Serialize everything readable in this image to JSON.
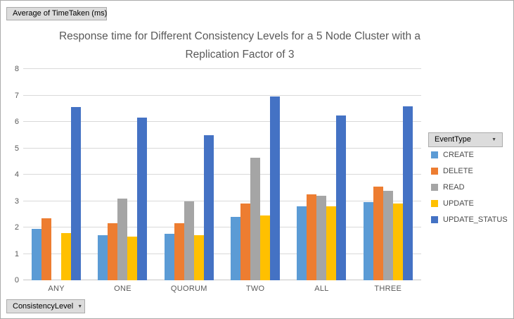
{
  "pivot_buttons": {
    "value_field": "Average of TimeTaken (ms)",
    "legend_field": "EventType",
    "axis_field": "ConsistencyLevel",
    "dropdown_arrow": "▼"
  },
  "chart_data": {
    "type": "bar",
    "title_line1": "Response time for Different Consistency Levels for a 5 Node Cluster with a",
    "title_line2": "Replication Factor of 3",
    "xlabel": "ConsistencyLevel",
    "ylabel": "Average of TimeTaken (ms)",
    "categories": [
      "ANY",
      "ONE",
      "QUORUM",
      "TWO",
      "ALL",
      "THREE"
    ],
    "series": [
      {
        "name": "CREATE",
        "color": "#5B9BD5",
        "values": [
          1.95,
          1.7,
          1.75,
          2.4,
          2.8,
          2.95
        ]
      },
      {
        "name": "DELETE",
        "color": "#ED7D31",
        "values": [
          2.35,
          2.15,
          2.15,
          2.9,
          3.25,
          3.55
        ]
      },
      {
        "name": "READ",
        "color": "#A5A5A5",
        "values": [
          0,
          3.1,
          3.0,
          4.65,
          3.2,
          3.4
        ]
      },
      {
        "name": "UPDATE",
        "color": "#FFC000",
        "values": [
          1.8,
          1.65,
          1.7,
          2.45,
          2.8,
          2.9
        ]
      },
      {
        "name": "UPDATE_STATUS",
        "color": "#4472C4",
        "values": [
          6.55,
          6.15,
          5.5,
          6.95,
          6.25,
          6.6
        ]
      }
    ],
    "ylim": [
      0,
      8
    ],
    "y_ticks": [
      0,
      1,
      2,
      3,
      4,
      5,
      6,
      7,
      8
    ],
    "grid": true,
    "legend_position": "right"
  },
  "colors": {
    "title_text": "#595959",
    "axis_text": "#595959",
    "gridline": "#D9D9D9",
    "button_bg": "#DCDCDC",
    "button_border": "#ABABAB"
  }
}
